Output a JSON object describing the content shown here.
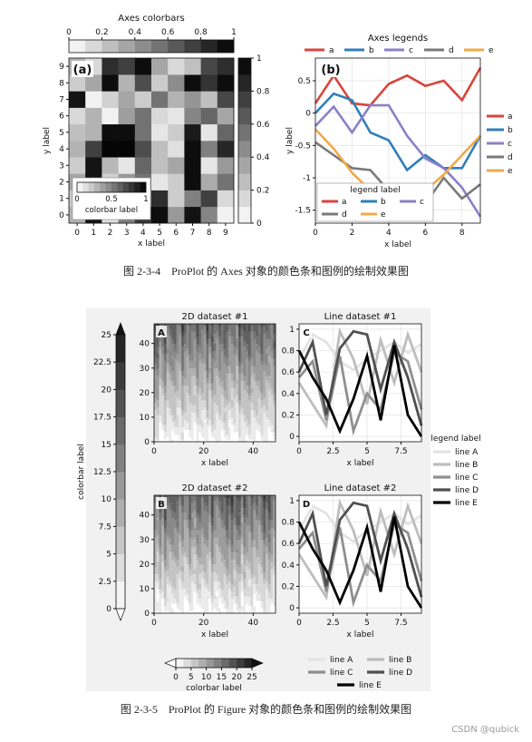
{
  "captions": {
    "fig4": "图 2-3-4　ProPlot 的 Axes 对象的颜色条和图例的绘制效果图",
    "fig5": "图 2-3-5　ProPlot 的 Figure 对象的颜色条和图例的绘制效果图"
  },
  "watermark": "CSDN @qubick",
  "chart_data": [
    {
      "type": "heatmap",
      "panel_tag": "a",
      "title": "Axes colorbars",
      "xlabel": "x label",
      "ylabel": "y label",
      "xticks": [
        "0",
        "1",
        "2",
        "3",
        "4",
        "5",
        "6",
        "7",
        "8",
        "9"
      ],
      "yticks": [
        "0",
        "1",
        "2",
        "3",
        "4",
        "5",
        "6",
        "7",
        "8",
        "9"
      ],
      "values": [
        [
          0.3,
          0.92,
          0.12,
          0.5,
          0.78,
          0.95,
          0.4,
          0.93,
          0.48,
          0.05
        ],
        [
          0.22,
          0.88,
          0.3,
          0.65,
          0.45,
          0.82,
          0.2,
          0.5,
          0.75,
          0.15
        ],
        [
          0.35,
          0.92,
          0.18,
          0.4,
          0.55,
          0.1,
          0.2,
          0.95,
          0.33,
          0.55
        ],
        [
          0.2,
          0.92,
          0.28,
          0.1,
          0.6,
          0.25,
          0.35,
          0.95,
          0.1,
          0.4
        ],
        [
          0.3,
          0.75,
          0.98,
          0.98,
          0.7,
          0.25,
          0.12,
          0.95,
          0.5,
          0.85
        ],
        [
          0.25,
          0.3,
          0.95,
          0.95,
          0.55,
          0.1,
          0.2,
          0.9,
          0.1,
          0.6
        ],
        [
          0.15,
          0.3,
          0.05,
          0.38,
          0.55,
          0.15,
          0.1,
          0.48,
          0.6,
          0.35
        ],
        [
          0.92,
          0.05,
          0.18,
          0.35,
          0.2,
          0.55,
          0.3,
          0.42,
          0.25,
          0.72
        ],
        [
          0.2,
          0.35,
          0.95,
          0.3,
          0.7,
          0.2,
          0.45,
          0.95,
          0.8,
          0.95
        ],
        [
          0.3,
          0.15,
          0.82,
          0.75,
          0.95,
          0.35,
          0.15,
          0.25,
          0.72,
          0.82
        ]
      ],
      "colorbars": [
        {
          "location": "top",
          "ticks": [
            "0",
            "0.2",
            "0.4",
            "0.6",
            "0.8",
            "1"
          ]
        },
        {
          "location": "right",
          "ticks": [
            "0",
            "0.2",
            "0.4",
            "0.6",
            "0.8",
            "1"
          ]
        },
        {
          "location": "inset lower-left",
          "label": "colorbar label",
          "ticks": [
            "0",
            "0.5",
            "1"
          ]
        }
      ],
      "colormap": "Greys"
    },
    {
      "type": "line",
      "panel_tag": "b",
      "title": "Axes legends",
      "xlabel": "x label",
      "ylabel": "y label",
      "x": [
        0,
        1,
        2,
        3,
        4,
        5,
        6,
        7,
        8,
        9
      ],
      "xticks": [
        "0",
        "2",
        "4",
        "6",
        "8"
      ],
      "yticks": [
        "0.5",
        "0",
        "-0.5",
        "-1",
        "-1.5"
      ],
      "ylim": [
        -1.7,
        0.85
      ],
      "series": [
        {
          "name": "a",
          "color": "#d9453d",
          "values": [
            0.15,
            0.58,
            0.15,
            0.12,
            0.45,
            0.58,
            0.42,
            0.5,
            0.2,
            0.7
          ]
        },
        {
          "name": "b",
          "color": "#2f7fb8",
          "values": [
            0.0,
            0.3,
            0.2,
            -0.3,
            -0.42,
            -0.88,
            -0.65,
            -0.85,
            -0.85,
            -0.35
          ]
        },
        {
          "name": "c",
          "color": "#8b80c6",
          "values": [
            -0.2,
            0.1,
            -0.3,
            0.12,
            0.12,
            -0.35,
            -0.7,
            -0.85,
            -1.15,
            -1.6
          ]
        },
        {
          "name": "d",
          "color": "#7a7a7a",
          "values": [
            -0.45,
            -0.65,
            -0.85,
            -0.88,
            -1.2,
            -1.35,
            -1.4,
            -1.0,
            -1.32,
            -1.1
          ]
        },
        {
          "name": "e",
          "color": "#efaa4a",
          "values": [
            -0.25,
            -0.55,
            -0.92,
            -1.2,
            -1.3,
            -1.25,
            -1.2,
            -0.95,
            -0.65,
            -0.35
          ]
        }
      ],
      "legends": [
        {
          "location": "top",
          "labels": [
            "a",
            "b",
            "c",
            "d",
            "e"
          ]
        },
        {
          "location": "right",
          "labels": [
            "a",
            "b",
            "c",
            "d",
            "e"
          ]
        },
        {
          "location": "lower-left",
          "title": "legend label",
          "labels": [
            "a",
            "b",
            "c",
            "d",
            "e"
          ]
        }
      ]
    },
    {
      "type": "heatmap",
      "panel_tag": "A",
      "title": "2D dataset #1",
      "xticks": [
        "0",
        "20",
        "40"
      ],
      "yticks": [
        "0",
        "10",
        "20",
        "30",
        "40"
      ],
      "xlabel": "x label",
      "xlim": [
        0,
        49
      ],
      "ylim": [
        0,
        48
      ],
      "colorbar": {
        "location": "left",
        "label": "colorbar label",
        "ticks": [
          "0",
          "2.5",
          "5",
          "7.5",
          "10",
          "12.5",
          "15",
          "17.5",
          "20",
          "22.5",
          "25"
        ],
        "extend": "both"
      }
    },
    {
      "type": "line",
      "panel_tag": "C",
      "title": "Line dataset #1",
      "xlabel": "x label",
      "xticks": [
        "0",
        "2.5",
        "5",
        "7.5"
      ],
      "yticks": [
        "0",
        "0.2",
        "0.4",
        "0.6",
        "0.8",
        "1"
      ],
      "ylim": [
        -0.05,
        1.05
      ],
      "x": [
        0,
        1,
        2,
        3,
        4,
        5,
        6,
        7,
        8,
        9
      ],
      "series": [
        {
          "name": "line A",
          "color": "#e3e3e3",
          "values": [
            0.72,
            0.95,
            0.88,
            0.7,
            0.62,
            0.72,
            0.8,
            0.88,
            0.78,
            0.86
          ]
        },
        {
          "name": "line B",
          "color": "#bdbdbd",
          "values": [
            0.5,
            0.3,
            0.1,
            0.98,
            0.72,
            0.3,
            0.9,
            0.5,
            0.95,
            0.6
          ]
        },
        {
          "name": "line C",
          "color": "#8f8f8f",
          "values": [
            0.55,
            0.7,
            0.15,
            0.75,
            0.05,
            0.4,
            0.25,
            0.78,
            0.7,
            0.25
          ]
        },
        {
          "name": "line D",
          "color": "#505050",
          "values": [
            0.6,
            0.88,
            0.2,
            0.82,
            0.98,
            0.95,
            0.44,
            0.88,
            0.55,
            0.1
          ]
        },
        {
          "name": "line E",
          "color": "#000000",
          "values": [
            0.8,
            0.55,
            0.35,
            0.05,
            0.35,
            0.75,
            0.15,
            0.85,
            0.2,
            0.0
          ]
        }
      ],
      "legend": {
        "location": "right",
        "title": "legend label",
        "labels": [
          "line A",
          "line B",
          "line C",
          "line D",
          "line E"
        ]
      }
    },
    {
      "type": "heatmap",
      "panel_tag": "B",
      "title": "2D dataset #2",
      "xticks": [
        "0",
        "20",
        "40"
      ],
      "yticks": [
        "0",
        "10",
        "20",
        "30",
        "40"
      ],
      "xlabel": "x label",
      "xlim": [
        0,
        49
      ],
      "ylim": [
        0,
        48
      ],
      "colorbar": {
        "location": "bottom",
        "label": "colorbar label",
        "ticks": [
          "0",
          "5",
          "10",
          "15",
          "20",
          "25"
        ],
        "extend": "both"
      }
    },
    {
      "type": "line",
      "panel_tag": "D",
      "title": "Line dataset #2",
      "xlabel": "x label",
      "xticks": [
        "0",
        "2.5",
        "5",
        "7.5"
      ],
      "yticks": [
        "0",
        "0.2",
        "0.4",
        "0.6",
        "0.8",
        "1"
      ],
      "ylim": [
        -0.05,
        1.05
      ],
      "x": [
        0,
        1,
        2,
        3,
        4,
        5,
        6,
        7,
        8,
        9
      ],
      "series": [
        {
          "name": "line A",
          "color": "#e3e3e3",
          "values": [
            0.72,
            0.95,
            0.88,
            0.7,
            0.62,
            0.72,
            0.8,
            0.88,
            0.78,
            0.86
          ]
        },
        {
          "name": "line B",
          "color": "#bdbdbd",
          "values": [
            0.5,
            0.3,
            0.1,
            0.98,
            0.72,
            0.3,
            0.9,
            0.5,
            0.95,
            0.6
          ]
        },
        {
          "name": "line C",
          "color": "#8f8f8f",
          "values": [
            0.55,
            0.7,
            0.15,
            0.75,
            0.05,
            0.4,
            0.25,
            0.78,
            0.7,
            0.25
          ]
        },
        {
          "name": "line D",
          "color": "#505050",
          "values": [
            0.6,
            0.88,
            0.2,
            0.82,
            0.98,
            0.95,
            0.44,
            0.88,
            0.55,
            0.1
          ]
        },
        {
          "name": "line E",
          "color": "#000000",
          "values": [
            0.8,
            0.55,
            0.35,
            0.05,
            0.35,
            0.75,
            0.15,
            0.85,
            0.2,
            0.0
          ]
        }
      ],
      "legend": {
        "location": "bottom",
        "labels": [
          "line A",
          "line B",
          "line C",
          "line D",
          "line E"
        ]
      }
    }
  ]
}
